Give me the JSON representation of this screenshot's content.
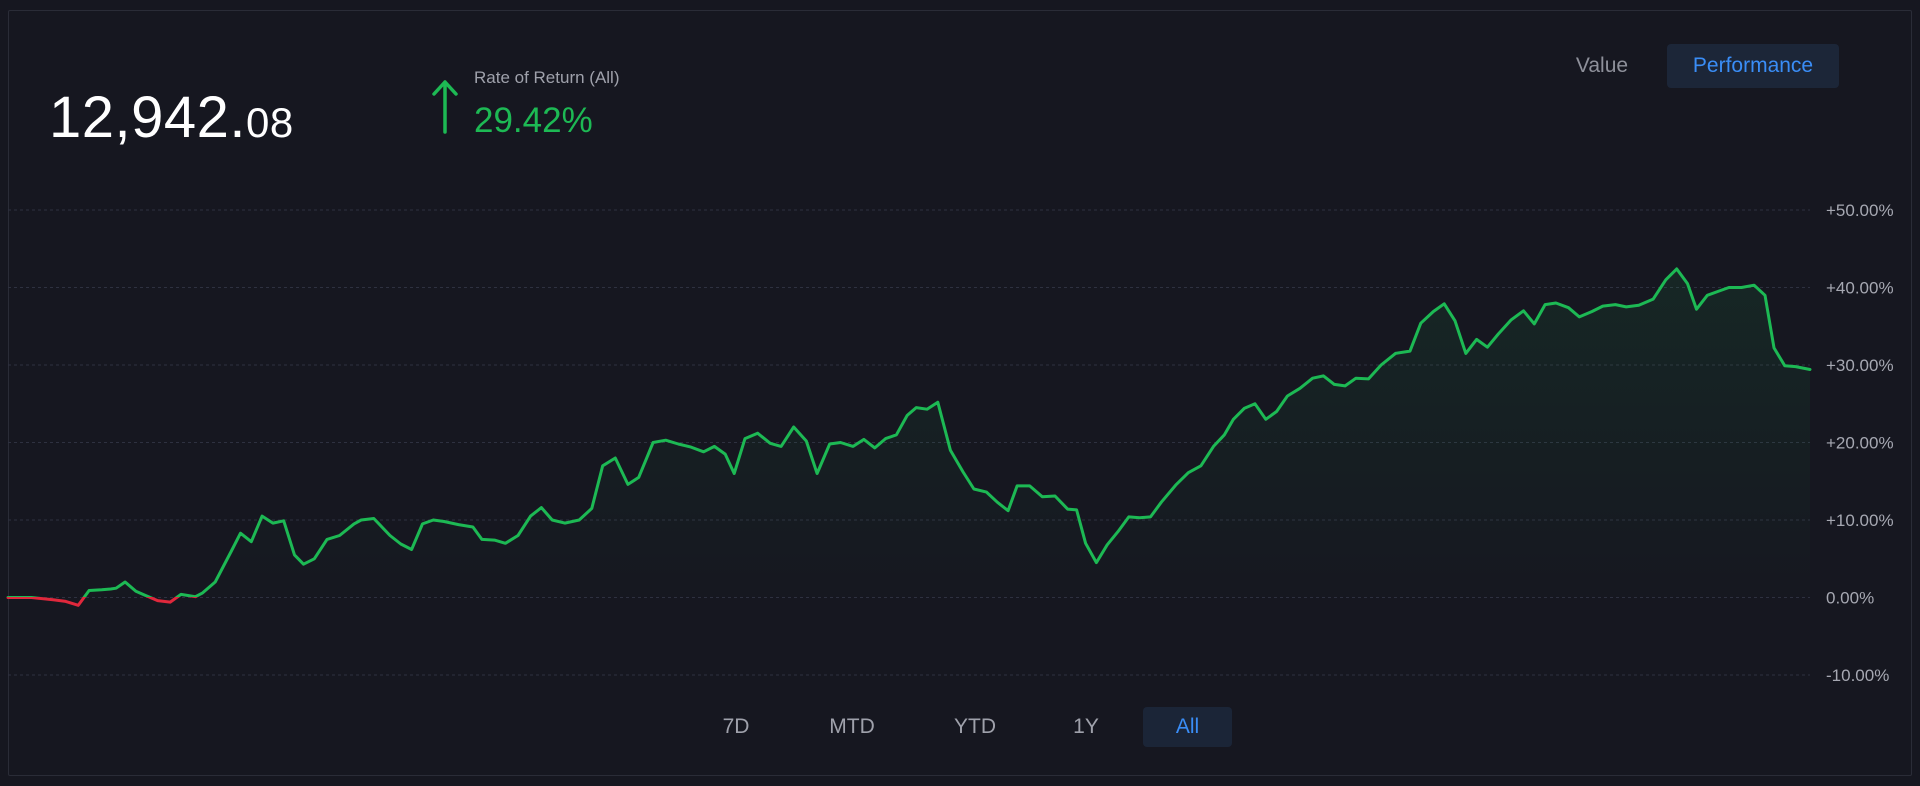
{
  "portfolio": {
    "balance_whole": "12,942.",
    "balance_cents": "08"
  },
  "rate_of_return": {
    "label": "Rate of Return (All)",
    "value": "29.42%",
    "arrow_icon": "arrow-up-icon",
    "color": "#1db954"
  },
  "view_toggle": {
    "value_label": "Value",
    "performance_label": "Performance",
    "selected": "Performance"
  },
  "period_selector": {
    "items": [
      "7D",
      "MTD",
      "YTD",
      "1Y",
      "All"
    ],
    "selected": "All"
  },
  "colors": {
    "background": "#161720",
    "positive": "#1db954",
    "negative": "#e0283c",
    "accent": "#3a8df6",
    "grid": "#2e3140"
  },
  "chart_data": {
    "type": "line",
    "title": "",
    "xlabel": "",
    "ylabel": "",
    "ylim": [
      -10,
      50
    ],
    "y_ticks": [
      50,
      40,
      30,
      20,
      10,
      0,
      -10
    ],
    "y_tick_labels": [
      "+50.00%",
      "+40.00%",
      "+30.00%",
      "+20.00%",
      "+10.00%",
      "0.00%",
      "-10.00%"
    ],
    "grid": true,
    "x_range": [
      0,
      100
    ],
    "series": [
      {
        "values": [
          [
            0,
            0.0
          ],
          [
            1.3,
            0.0
          ],
          [
            2.5,
            -0.3
          ],
          [
            3.2,
            -0.5
          ],
          [
            3.9,
            -1.0
          ],
          [
            4.5,
            0.9
          ],
          [
            5.2,
            1.0
          ],
          [
            5.7,
            1.1
          ],
          [
            6.0,
            1.2
          ],
          [
            6.5,
            2.0
          ],
          [
            7.1,
            0.8
          ],
          [
            7.6,
            0.3
          ],
          [
            8.3,
            -0.4
          ],
          [
            9.0,
            -0.6
          ],
          [
            9.6,
            0.4
          ],
          [
            10.4,
            0.1
          ],
          [
            10.8,
            0.6
          ],
          [
            11.5,
            2.0
          ],
          [
            12.4,
            6.0
          ],
          [
            12.9,
            8.3
          ],
          [
            13.5,
            7.2
          ],
          [
            14.1,
            10.5
          ],
          [
            14.7,
            9.6
          ],
          [
            15.3,
            9.9
          ],
          [
            15.9,
            5.5
          ],
          [
            16.4,
            4.3
          ],
          [
            17.0,
            5.0
          ],
          [
            17.7,
            7.5
          ],
          [
            18.4,
            8.0
          ],
          [
            19.2,
            9.5
          ],
          [
            19.6,
            10.0
          ],
          [
            20.3,
            10.2
          ],
          [
            21.2,
            8.0
          ],
          [
            21.8,
            6.9
          ],
          [
            22.4,
            6.2
          ],
          [
            23.0,
            9.5
          ],
          [
            23.6,
            10.0
          ],
          [
            24.2,
            9.8
          ],
          [
            25.0,
            9.4
          ],
          [
            25.8,
            9.1
          ],
          [
            26.3,
            7.5
          ],
          [
            27.0,
            7.4
          ],
          [
            27.6,
            7.0
          ],
          [
            28.3,
            8.0
          ],
          [
            29.0,
            10.5
          ],
          [
            29.6,
            11.6
          ],
          [
            30.2,
            10.0
          ],
          [
            30.9,
            9.6
          ],
          [
            31.7,
            10.0
          ],
          [
            32.4,
            11.5
          ],
          [
            33.0,
            17.0
          ],
          [
            33.7,
            18.0
          ],
          [
            34.4,
            14.6
          ],
          [
            35.0,
            15.5
          ],
          [
            35.8,
            20.0
          ],
          [
            36.5,
            20.3
          ],
          [
            37.2,
            19.8
          ],
          [
            37.9,
            19.4
          ],
          [
            38.6,
            18.8
          ],
          [
            39.2,
            19.5
          ],
          [
            39.8,
            18.5
          ],
          [
            40.3,
            16.0
          ],
          [
            40.9,
            20.5
          ],
          [
            41.6,
            21.2
          ],
          [
            42.3,
            19.9
          ],
          [
            42.9,
            19.5
          ],
          [
            43.6,
            22.0
          ],
          [
            44.3,
            20.2
          ],
          [
            44.9,
            16.0
          ],
          [
            45.6,
            19.8
          ],
          [
            46.2,
            20.0
          ],
          [
            46.9,
            19.5
          ],
          [
            47.5,
            20.4
          ],
          [
            48.1,
            19.3
          ],
          [
            48.7,
            20.5
          ],
          [
            49.3,
            21.0
          ],
          [
            49.9,
            23.5
          ],
          [
            50.4,
            24.5
          ],
          [
            51.0,
            24.3
          ],
          [
            51.6,
            25.2
          ],
          [
            52.3,
            19.0
          ],
          [
            53.0,
            16.2
          ],
          [
            53.6,
            14.0
          ],
          [
            54.3,
            13.6
          ],
          [
            54.9,
            12.3
          ],
          [
            55.5,
            11.2
          ],
          [
            56.0,
            14.4
          ],
          [
            56.7,
            14.4
          ],
          [
            57.4,
            13.0
          ],
          [
            58.1,
            13.1
          ],
          [
            58.8,
            11.4
          ],
          [
            59.3,
            11.3
          ],
          [
            59.8,
            7.0
          ],
          [
            60.4,
            4.5
          ],
          [
            61.0,
            6.8
          ],
          [
            61.6,
            8.5
          ],
          [
            62.2,
            10.4
          ],
          [
            62.8,
            10.3
          ],
          [
            63.4,
            10.4
          ],
          [
            64.0,
            12.3
          ],
          [
            64.8,
            14.5
          ],
          [
            65.5,
            16.1
          ],
          [
            66.2,
            17.0
          ],
          [
            66.9,
            19.5
          ],
          [
            67.5,
            21.0
          ],
          [
            68.0,
            23.0
          ],
          [
            68.6,
            24.4
          ],
          [
            69.2,
            25.0
          ],
          [
            69.8,
            23.0
          ],
          [
            70.4,
            24.0
          ],
          [
            71.0,
            26.0
          ],
          [
            71.7,
            27.0
          ],
          [
            72.4,
            28.3
          ],
          [
            73.0,
            28.6
          ],
          [
            73.6,
            27.5
          ],
          [
            74.2,
            27.3
          ],
          [
            74.8,
            28.3
          ],
          [
            75.5,
            28.2
          ],
          [
            76.2,
            30.0
          ],
          [
            77.0,
            31.5
          ],
          [
            77.8,
            31.8
          ],
          [
            78.4,
            35.4
          ],
          [
            79.1,
            36.9
          ],
          [
            79.7,
            37.9
          ],
          [
            80.3,
            35.7
          ],
          [
            80.9,
            31.5
          ],
          [
            81.5,
            33.3
          ],
          [
            82.1,
            32.3
          ],
          [
            82.7,
            34.0
          ],
          [
            83.4,
            35.8
          ],
          [
            84.1,
            37.0
          ],
          [
            84.7,
            35.3
          ],
          [
            85.3,
            37.8
          ],
          [
            85.9,
            38.0
          ],
          [
            86.6,
            37.4
          ],
          [
            87.2,
            36.2
          ],
          [
            87.9,
            36.9
          ],
          [
            88.5,
            37.6
          ],
          [
            89.2,
            37.8
          ],
          [
            89.8,
            37.5
          ],
          [
            90.5,
            37.7
          ],
          [
            91.3,
            38.5
          ],
          [
            92.0,
            41.0
          ],
          [
            92.6,
            42.4
          ],
          [
            93.2,
            40.5
          ],
          [
            93.7,
            37.2
          ],
          [
            94.3,
            39.0
          ],
          [
            94.9,
            39.5
          ],
          [
            95.5,
            40.0
          ],
          [
            96.2,
            40.0
          ],
          [
            96.9,
            40.3
          ],
          [
            97.5,
            39.0
          ],
          [
            98.0,
            32.2
          ],
          [
            98.6,
            29.9
          ],
          [
            99.2,
            29.8
          ],
          [
            100.0,
            29.42
          ]
        ]
      }
    ]
  }
}
